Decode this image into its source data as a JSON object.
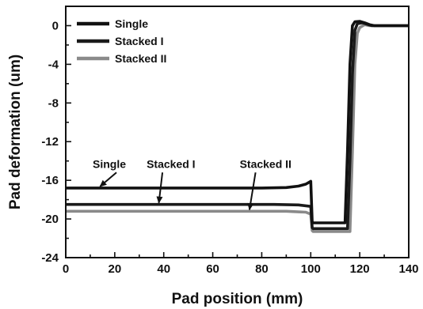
{
  "chart_data": {
    "type": "line",
    "xlabel": "Pad position (mm)",
    "ylabel": "Pad deformation (um)",
    "xlim": [
      0,
      140
    ],
    "ylim": [
      -24,
      2
    ],
    "xticks": [
      0,
      20,
      40,
      60,
      80,
      100,
      120,
      140
    ],
    "yticks": [
      0,
      -4,
      -8,
      -12,
      -16,
      -20,
      -24
    ],
    "grid": false,
    "legend_position": "top-left",
    "series": [
      {
        "name": "Single",
        "color": "#111111",
        "x": [
          0,
          80,
          90,
          95,
          98,
          100,
          100.6,
          101,
          114,
          115,
          116,
          117,
          118,
          120,
          122,
          124,
          126,
          140
        ],
        "y": [
          -16.8,
          -16.8,
          -16.75,
          -16.6,
          -16.4,
          -16.1,
          -20.3,
          -20.4,
          -20.4,
          -13,
          -4,
          0,
          0.4,
          0.45,
          0.3,
          0.1,
          0,
          0
        ]
      },
      {
        "name": "Stacked I",
        "color": "#1a1a1a",
        "x": [
          0,
          85,
          95,
          100,
          100.6,
          101,
          115,
          116,
          117,
          118,
          119,
          121,
          123,
          125,
          140
        ],
        "y": [
          -18.5,
          -18.5,
          -18.55,
          -18.7,
          -20.9,
          -21.0,
          -21.0,
          -14,
          -5,
          -0.5,
          0.2,
          0.3,
          0.15,
          0,
          0
        ]
      },
      {
        "name": "Stacked II",
        "color": "#8a8a8a",
        "x": [
          0,
          90,
          98,
          100,
          100.6,
          101,
          116,
          117,
          118,
          119,
          120,
          122,
          124,
          126,
          140
        ],
        "y": [
          -19.2,
          -19.2,
          -19.3,
          -19.5,
          -21.2,
          -21.3,
          -21.3,
          -13,
          -4,
          -0.8,
          -0.2,
          0.1,
          0,
          0,
          0
        ]
      }
    ],
    "annotations": [
      {
        "text": "Single",
        "x": 11,
        "y": -14.7,
        "arrow_to": [
          14,
          -16.8
        ]
      },
      {
        "text": "Stacked I",
        "x": 33,
        "y": -14.7,
        "arrow_to": [
          38,
          -18.5
        ]
      },
      {
        "text": "Stacked II",
        "x": 71,
        "y": -14.7,
        "arrow_to": [
          75,
          -19.2
        ]
      }
    ]
  }
}
